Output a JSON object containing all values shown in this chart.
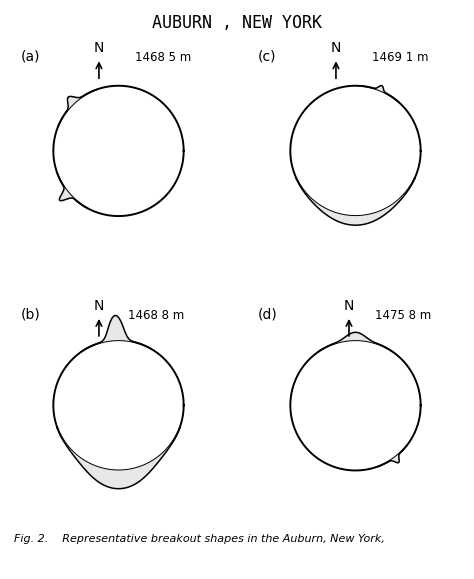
{
  "title": "AUBURN , NEW YORK",
  "title_fontsize": 12,
  "background_color": "#ffffff",
  "caption": "Fig. 2.    Representative breakout shapes in the Auburn, New York,",
  "caption_fontsize": 8,
  "panels": {
    "a": {
      "label": "(a)",
      "depth": "1468 5 m"
    },
    "b": {
      "label": "(b)",
      "depth": "1468 8 m"
    },
    "c": {
      "label": "(c)",
      "depth": "1469 1 m"
    },
    "d": {
      "label": "(d)",
      "depth": "1475 8 m"
    }
  }
}
